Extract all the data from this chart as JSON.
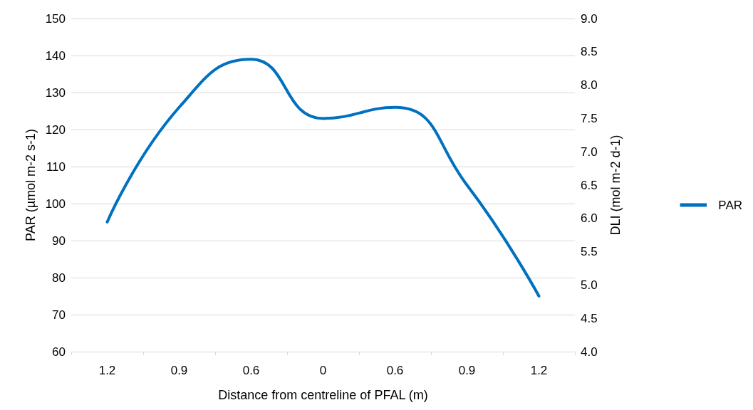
{
  "chart_data": {
    "type": "line",
    "xlabel": "Distance from centreline of PFAL (m)",
    "ylabel": "PAR (µmol m-2 s-1)",
    "y2label": "DLI (mol m-2 d-1)",
    "categories": [
      "1.2",
      "0.9",
      "0.6",
      "0",
      "0.6",
      "0.9",
      "1.2"
    ],
    "series": [
      {
        "name": "PAR",
        "color": "#0070c0",
        "values": [
          95,
          126,
          139,
          123,
          126,
          105,
          75
        ]
      }
    ],
    "ylim": [
      60,
      150
    ],
    "yticks": [
      60,
      70,
      80,
      90,
      100,
      110,
      120,
      130,
      140,
      150
    ],
    "y2lim": [
      4,
      9
    ],
    "y2ticks": [
      {
        "value": 4,
        "label": "4.0"
      },
      {
        "value": 4.5,
        "label": "4.5"
      },
      {
        "value": 5,
        "label": "5.0"
      },
      {
        "value": 5.5,
        "label": "5.5"
      },
      {
        "value": 6,
        "label": "6.0"
      },
      {
        "value": 6.5,
        "label": "6.5"
      },
      {
        "value": 7,
        "label": "7.0"
      },
      {
        "value": 7.5,
        "label": "7.5"
      },
      {
        "value": 8,
        "label": "8.0"
      },
      {
        "value": 8.5,
        "label": "8.5"
      },
      {
        "value": 9,
        "label": "9.0"
      }
    ],
    "grid": "y",
    "legend": "right",
    "marker": "none",
    "line_style": "solid"
  }
}
